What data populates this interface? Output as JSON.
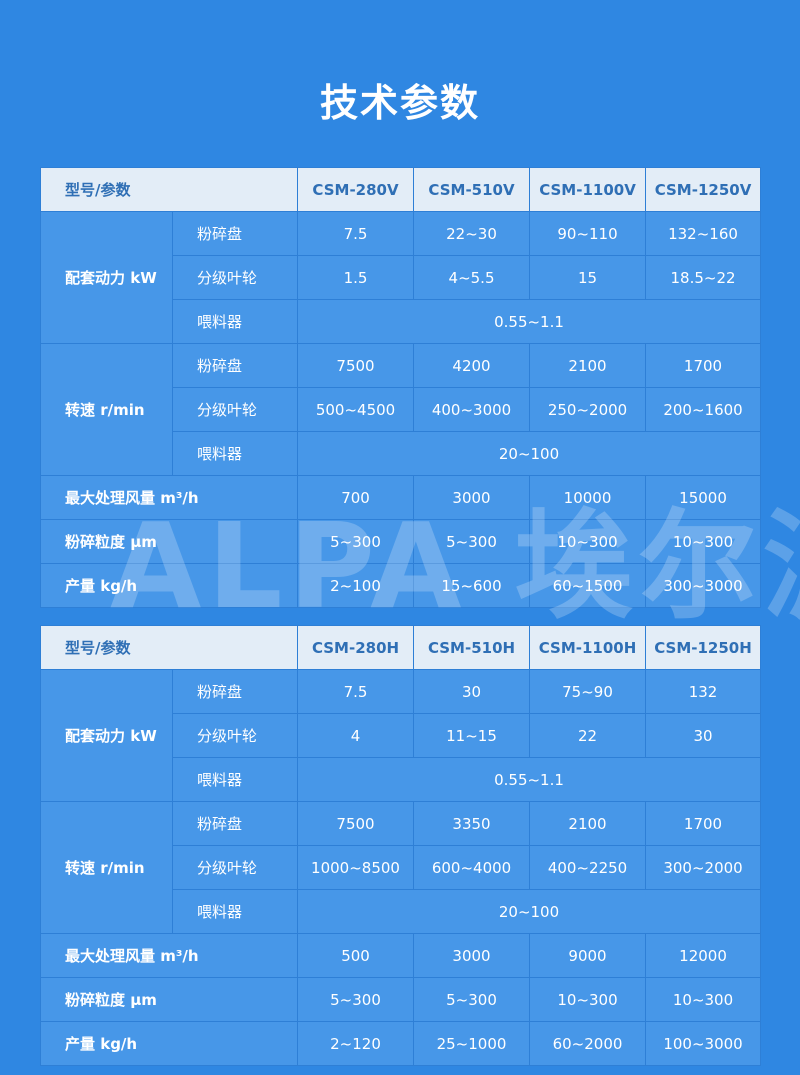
{
  "title": "技术参数",
  "watermark": "ALPA 埃尔派",
  "colors": {
    "background": "#2f87e2",
    "cell": "#4797e8",
    "header": "#e3edf7",
    "header_text": "#2f6fb5"
  },
  "tables": [
    {
      "header": "型号/参数",
      "models": [
        "CSM-280V",
        "CSM-510V",
        "CSM-1100V",
        "CSM-1250V"
      ],
      "groups": [
        {
          "label": "配套动力 kW",
          "rows": [
            {
              "sub": "粉碎盘",
              "values": [
                "7.5",
                "22~30",
                "90~110",
                "132~160"
              ]
            },
            {
              "sub": "分级叶轮",
              "values": [
                "1.5",
                "4~5.5",
                "15",
                "18.5~22"
              ]
            },
            {
              "sub": "喂料器",
              "span": "0.55~1.1"
            }
          ]
        },
        {
          "label": "转速 r/min",
          "rows": [
            {
              "sub": "粉碎盘",
              "values": [
                "7500",
                "4200",
                "2100",
                "1700"
              ]
            },
            {
              "sub": "分级叶轮",
              "values": [
                "500~4500",
                "400~3000",
                "250~2000",
                "200~1600"
              ]
            },
            {
              "sub": "喂料器",
              "span": "20~100"
            }
          ]
        },
        {
          "label": "最大处理风量 m³/h",
          "values": [
            "700",
            "3000",
            "10000",
            "15000"
          ]
        },
        {
          "label": "粉碎粒度 μm",
          "values": [
            "5~300",
            "5~300",
            "10~300",
            "10~300"
          ]
        },
        {
          "label": "产量 kg/h",
          "values": [
            "2~100",
            "15~600",
            "60~1500",
            "300~3000"
          ]
        }
      ]
    },
    {
      "header": "型号/参数",
      "models": [
        "CSM-280H",
        "CSM-510H",
        "CSM-1100H",
        "CSM-1250H"
      ],
      "groups": [
        {
          "label": "配套动力 kW",
          "rows": [
            {
              "sub": "粉碎盘",
              "values": [
                "7.5",
                "30",
                "75~90",
                "132"
              ]
            },
            {
              "sub": "分级叶轮",
              "values": [
                "4",
                "11~15",
                "22",
                "30"
              ]
            },
            {
              "sub": "喂料器",
              "span": "0.55~1.1"
            }
          ]
        },
        {
          "label": "转速 r/min",
          "rows": [
            {
              "sub": "粉碎盘",
              "values": [
                "7500",
                "3350",
                "2100",
                "1700"
              ]
            },
            {
              "sub": "分级叶轮",
              "values": [
                "1000~8500",
                "600~4000",
                "400~2250",
                "300~2000"
              ]
            },
            {
              "sub": "喂料器",
              "span": "20~100"
            }
          ]
        },
        {
          "label": "最大处理风量 m³/h",
          "values": [
            "500",
            "3000",
            "9000",
            "12000"
          ]
        },
        {
          "label": "粉碎粒度 μm",
          "values": [
            "5~300",
            "5~300",
            "10~300",
            "10~300"
          ]
        },
        {
          "label": "产量 kg/h",
          "values": [
            "2~120",
            "25~1000",
            "60~2000",
            "100~3000"
          ]
        }
      ]
    }
  ]
}
